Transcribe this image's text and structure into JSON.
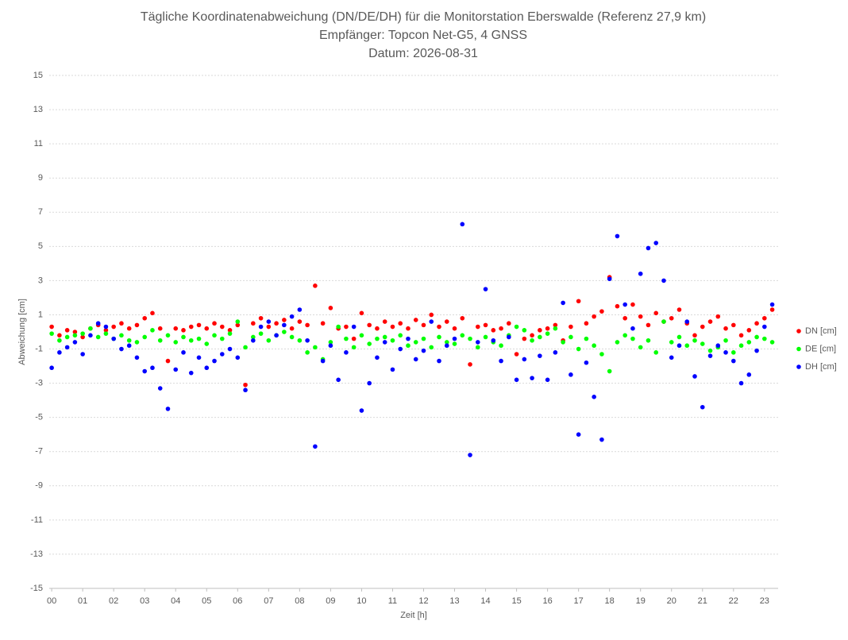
{
  "chart_data": {
    "type": "scatter",
    "title": "Tägliche Koordinatenabweichung (DN/DE/DH) für die Monitorstation Eberswalde (Referenz 27,9 km)",
    "subtitle": [
      "Empfänger: Topcon Net-G5, 4 GNSS",
      "Datum: 2026-08-31"
    ],
    "x_label": "Zeit [h]",
    "y_label": "Abweichung [cm]",
    "x": [
      0,
      0.25,
      0.5,
      0.75,
      1,
      1.25,
      1.5,
      1.75,
      2,
      2.25,
      2.5,
      2.75,
      3,
      3.25,
      3.5,
      3.75,
      4,
      4.25,
      4.5,
      4.75,
      5,
      5.25,
      5.5,
      5.75,
      6,
      6.25,
      6.5,
      6.75,
      7,
      7.25,
      7.5,
      7.75,
      8,
      8.25,
      8.5,
      8.75,
      9,
      9.25,
      9.5,
      9.75,
      10,
      10.25,
      10.5,
      10.75,
      11,
      11.25,
      11.5,
      11.75,
      12,
      12.25,
      12.5,
      12.75,
      13,
      13.25,
      13.5,
      13.75,
      14,
      14.25,
      14.5,
      14.75,
      15,
      15.25,
      15.5,
      15.75,
      16,
      16.25,
      16.5,
      16.75,
      17,
      17.25,
      17.5,
      17.75,
      18,
      18.25,
      18.5,
      18.75,
      19,
      19.25,
      19.5,
      19.75,
      20,
      20.25,
      20.5,
      20.75,
      21,
      21.25,
      21.5,
      21.75,
      22,
      22.25,
      22.5,
      22.75,
      23,
      23.25
    ],
    "series": [
      {
        "name": "DN [cm]",
        "color": "#ff0000",
        "values": [
          0.3,
          -0.2,
          0.1,
          0.0,
          -0.3,
          0.2,
          0.4,
          0.1,
          0.3,
          0.5,
          0.2,
          0.4,
          0.8,
          1.1,
          0.2,
          -1.7,
          0.2,
          0.1,
          0.3,
          0.4,
          0.2,
          0.5,
          0.3,
          0.1,
          0.4,
          -3.1,
          0.5,
          0.8,
          0.3,
          0.5,
          0.7,
          0.2,
          0.6,
          0.4,
          2.7,
          0.5,
          1.4,
          0.2,
          0.3,
          -0.4,
          1.1,
          0.4,
          0.2,
          0.6,
          0.3,
          0.5,
          0.2,
          0.7,
          0.4,
          1.0,
          0.3,
          0.6,
          0.2,
          0.8,
          -1.9,
          0.3,
          0.4,
          0.1,
          0.2,
          0.5,
          -1.3,
          -0.4,
          -0.2,
          0.1,
          0.2,
          0.4,
          -0.5,
          0.3,
          1.8,
          0.5,
          0.9,
          1.2,
          3.2,
          1.5,
          0.8,
          1.6,
          0.9,
          0.4,
          1.1,
          0.6,
          0.8,
          1.3,
          0.5,
          -0.2,
          0.3,
          0.6,
          0.9,
          0.2,
          0.4,
          -0.2,
          0.1,
          0.5,
          0.8,
          1.3
        ]
      },
      {
        "name": "DE [cm]",
        "color": "#00ff00",
        "values": [
          -0.1,
          -0.5,
          -0.3,
          -0.2,
          -0.1,
          0.2,
          -0.3,
          -0.1,
          -0.4,
          -0.2,
          -0.5,
          -0.6,
          -0.3,
          0.1,
          -0.5,
          -0.2,
          -0.6,
          -0.3,
          -0.5,
          -0.4,
          -0.7,
          -0.2,
          -0.4,
          -0.1,
          0.6,
          -0.9,
          -0.3,
          -0.1,
          -0.5,
          -0.2,
          0.0,
          -0.3,
          -0.5,
          -1.2,
          -0.9,
          -1.6,
          -0.6,
          0.3,
          -0.4,
          -0.9,
          -0.2,
          -0.7,
          -0.4,
          -0.3,
          -0.5,
          -0.2,
          -0.8,
          -0.6,
          -0.4,
          -0.9,
          -0.3,
          -0.6,
          -0.7,
          -0.2,
          -0.4,
          -0.9,
          -0.3,
          -0.6,
          -0.8,
          -0.2,
          0.3,
          0.1,
          -0.5,
          -0.3,
          -0.1,
          0.2,
          -0.6,
          -0.3,
          -1.0,
          -0.4,
          -0.8,
          -1.3,
          -2.3,
          -0.6,
          -0.2,
          -0.4,
          -0.9,
          -0.5,
          -1.2,
          0.6,
          -0.6,
          -0.3,
          -0.8,
          -0.5,
          -0.7,
          -1.1,
          -0.9,
          -0.5,
          -1.2,
          -0.8,
          -0.6,
          -0.3,
          -0.4,
          -0.6
        ]
      },
      {
        "name": "DH [cm]",
        "color": "#0000ff",
        "values": [
          -2.1,
          -1.2,
          -0.9,
          -0.6,
          -1.3,
          -0.2,
          0.5,
          0.3,
          -0.4,
          -1.0,
          -0.8,
          -1.5,
          -2.3,
          -2.1,
          -3.3,
          -4.5,
          -2.2,
          -1.2,
          -2.4,
          -1.5,
          -2.1,
          -1.7,
          -1.3,
          -1.0,
          -1.5,
          -3.4,
          -0.5,
          0.3,
          0.6,
          -0.2,
          0.4,
          0.9,
          1.3,
          -0.5,
          -6.7,
          -1.7,
          -0.8,
          -2.8,
          -1.2,
          0.3,
          -4.6,
          -3.0,
          -1.5,
          -0.6,
          -2.2,
          -1.0,
          -0.4,
          -1.6,
          -1.1,
          0.6,
          -1.7,
          -0.8,
          -0.4,
          6.3,
          -7.2,
          -0.6,
          2.5,
          -0.5,
          -1.7,
          -0.3,
          -2.8,
          -1.6,
          -2.7,
          -1.4,
          -2.8,
          -1.2,
          1.7,
          -2.5,
          -6.0,
          -1.8,
          -3.8,
          -6.3,
          3.1,
          5.6,
          1.6,
          0.2,
          3.4,
          4.9,
          5.2,
          3.0,
          -1.5,
          -0.8,
          0.6,
          -2.6,
          -4.4,
          -1.4,
          -0.8,
          -1.2,
          -1.7,
          -3.0,
          -2.5,
          -1.1,
          0.3,
          1.6
        ]
      }
    ],
    "xlim": [
      -0.08,
      23.44
    ],
    "xticks": [
      {
        "value": 0,
        "label": "00"
      },
      {
        "value": 1,
        "label": "01"
      },
      {
        "value": 2,
        "label": "02"
      },
      {
        "value": 3,
        "label": "03"
      },
      {
        "value": 4,
        "label": "04"
      },
      {
        "value": 5,
        "label": "05"
      },
      {
        "value": 6,
        "label": "06"
      },
      {
        "value": 7,
        "label": "07"
      },
      {
        "value": 8,
        "label": "08"
      },
      {
        "value": 9,
        "label": "09"
      },
      {
        "value": 10,
        "label": "10"
      },
      {
        "value": 11,
        "label": "11"
      },
      {
        "value": 12,
        "label": "12"
      },
      {
        "value": 13,
        "label": "13"
      },
      {
        "value": 14,
        "label": "14"
      },
      {
        "value": 15,
        "label": "15"
      },
      {
        "value": 16,
        "label": "16"
      },
      {
        "value": 17,
        "label": "17"
      },
      {
        "value": 18,
        "label": "18"
      },
      {
        "value": 19,
        "label": "19"
      },
      {
        "value": 20,
        "label": "20"
      },
      {
        "value": 21,
        "label": "21"
      },
      {
        "value": 22,
        "label": "22"
      },
      {
        "value": 23,
        "label": "23"
      }
    ],
    "ylim": [
      -15,
      15
    ],
    "yticks": [
      -15,
      -13,
      -11,
      -9,
      -7,
      -5,
      -3,
      -1,
      1,
      3,
      5,
      7,
      9,
      11,
      13,
      15
    ],
    "grid": true,
    "legend": "right"
  }
}
